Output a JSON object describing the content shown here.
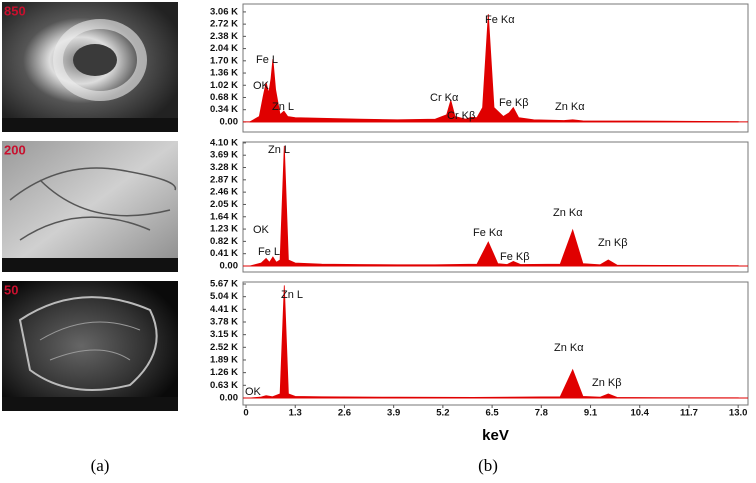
{
  "chart_data": [
    {
      "type": "area",
      "color": "#e00000",
      "x": [
        0.1,
        0.35,
        0.45,
        0.53,
        0.6,
        0.66,
        0.71,
        0.78,
        0.9,
        1.0,
        1.1,
        1.3,
        2.0,
        3.0,
        4.0,
        5.0,
        5.3,
        5.41,
        5.52,
        5.8,
        5.95,
        6.1,
        6.25,
        6.4,
        6.55,
        6.8,
        6.95,
        7.06,
        7.2,
        7.6,
        8.4,
        8.63,
        8.9,
        10,
        11,
        12,
        13
      ],
      "values": [
        0,
        150,
        700,
        1100,
        800,
        1200,
        1750,
        900,
        200,
        300,
        150,
        120,
        100,
        80,
        60,
        80,
        200,
        600,
        150,
        80,
        130,
        120,
        400,
        3000,
        400,
        150,
        250,
        400,
        120,
        60,
        40,
        60,
        30,
        25,
        20,
        15,
        10
      ],
      "xlim": [
        -0.08,
        13.26
      ],
      "ylim": [
        -280,
        3280
      ],
      "yticks": [
        {
          "value": 0,
          "label": "0.00"
        },
        {
          "value": 340,
          "label": "0.34 K"
        },
        {
          "value": 680,
          "label": "0.68 K"
        },
        {
          "value": 1020,
          "label": "1.02 K"
        },
        {
          "value": 1360,
          "label": "1.36 K"
        },
        {
          "value": 1700,
          "label": "1.70 K"
        },
        {
          "value": 2040,
          "label": "2.04 K"
        },
        {
          "value": 2380,
          "label": "2.38 K"
        },
        {
          "value": 2720,
          "label": "2.72 K"
        },
        {
          "value": 3060,
          "label": "3.06 K"
        }
      ],
      "annotations": [
        "Fe Kα",
        "Fe L",
        "OK",
        "Zn L",
        "Cr Kα",
        "Cr Kβ",
        "Fe Kβ",
        "Zn Kα"
      ]
    },
    {
      "type": "area",
      "color": "#e00000",
      "x": [
        0.1,
        0.4,
        0.53,
        0.62,
        0.71,
        0.8,
        0.9,
        1.01,
        1.12,
        1.3,
        2,
        3,
        4,
        5,
        6.1,
        6.4,
        6.65,
        6.9,
        7.06,
        7.25,
        8.3,
        8.63,
        8.9,
        9.35,
        9.57,
        9.8,
        11,
        13
      ],
      "values": [
        0,
        100,
        250,
        120,
        300,
        120,
        200,
        4000,
        200,
        100,
        60,
        50,
        40,
        40,
        60,
        800,
        80,
        50,
        150,
        50,
        60,
        1200,
        80,
        40,
        200,
        30,
        20,
        10
      ],
      "xlim": [
        -0.08,
        13.26
      ],
      "ylim": [
        -200,
        4130
      ],
      "yticks": [
        {
          "value": 0,
          "label": "0.00"
        },
        {
          "value": 410,
          "label": "0.41 K"
        },
        {
          "value": 820,
          "label": "0.82 K"
        },
        {
          "value": 1230,
          "label": "1.23 K"
        },
        {
          "value": 1640,
          "label": "1.64 K"
        },
        {
          "value": 2050,
          "label": "2.05 K"
        },
        {
          "value": 2460,
          "label": "2.46 K"
        },
        {
          "value": 2870,
          "label": "2.87 K"
        },
        {
          "value": 3280,
          "label": "3.28 K"
        },
        {
          "value": 3690,
          "label": "3.69 K"
        },
        {
          "value": 4100,
          "label": "4.10 K"
        }
      ],
      "annotations": [
        "Zn L",
        "OK",
        "Fe L",
        "Fe Kα",
        "Fe Kβ",
        "Zn Kα",
        "Zn Kβ"
      ]
    },
    {
      "type": "area",
      "color": "#e00000",
      "x": [
        0.1,
        0.4,
        0.53,
        0.7,
        0.9,
        1.01,
        1.12,
        1.3,
        2,
        4,
        6,
        8.3,
        8.63,
        8.9,
        9.35,
        9.57,
        9.8,
        11,
        13
      ],
      "values": [
        0,
        50,
        120,
        60,
        200,
        5600,
        200,
        80,
        60,
        40,
        30,
        60,
        1400,
        80,
        40,
        200,
        30,
        20,
        10
      ],
      "xlim": [
        -0.08,
        13.26
      ],
      "ylim": [
        -350,
        5770
      ],
      "yticks": [
        {
          "value": 0,
          "label": "0.00"
        },
        {
          "value": 630,
          "label": "0.63 K"
        },
        {
          "value": 1260,
          "label": "1.26 K"
        },
        {
          "value": 1890,
          "label": "1.89 K"
        },
        {
          "value": 2520,
          "label": "2.52 K"
        },
        {
          "value": 3150,
          "label": "3.15 K"
        },
        {
          "value": 3780,
          "label": "3.78 K"
        },
        {
          "value": 4410,
          "label": "4.41 K"
        },
        {
          "value": 5040,
          "label": "5.04 K"
        },
        {
          "value": 5670,
          "label": "5.67 K"
        }
      ],
      "xticks": [
        0,
        1.3,
        2.6,
        3.9,
        5.2,
        6.5,
        7.8,
        9.1,
        10.4,
        11.7,
        {
          "value": 13,
          "label": "13.0"
        }
      ],
      "xlabel": "keV",
      "annotations": [
        "Zn L",
        "OK",
        "Zn Kα",
        "Zn Kβ"
      ]
    }
  ],
  "images": [
    {
      "label": "850"
    },
    {
      "label": "200"
    },
    {
      "label": "50"
    }
  ],
  "captions": [
    "(a)",
    "(b)"
  ]
}
